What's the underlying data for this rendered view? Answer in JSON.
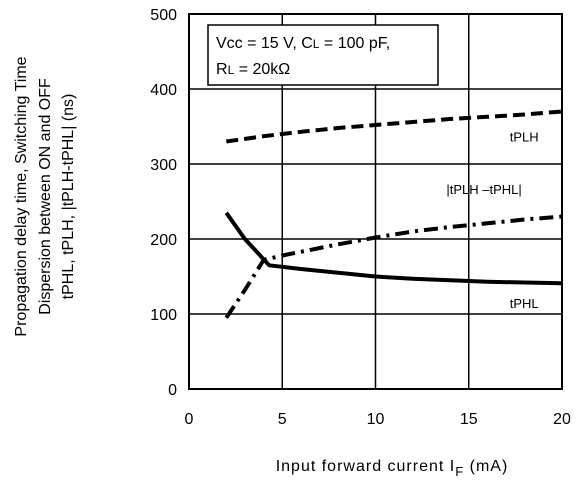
{
  "chart_data": {
    "type": "line",
    "xlabel": "Input forward current I",
    "xlabel_sub": "F",
    "xlabel_unit": " (mA)",
    "ylabel_lines": [
      "Propagation delay time, Switching Time",
      "Dispersion between ON and OFF",
      "tPHL, tPLH, |tPLH-tPHL| (ns)"
    ],
    "xlim": [
      0,
      20
    ],
    "ylim": [
      0,
      500
    ],
    "xticks": [
      "0",
      "5",
      "10",
      "15",
      "20"
    ],
    "yticks": [
      "0",
      "100",
      "200",
      "300",
      "400",
      "500"
    ],
    "grid": true,
    "conditions": {
      "line1": "Vcc = 15 V, C",
      "line1_sub": "L",
      "line1_end": " = 100 pF,",
      "line2": "R",
      "line2_sub": "L",
      "line2_end": " = 20kΩ"
    },
    "series": [
      {
        "name": "tPLH",
        "style": "dashed",
        "x": [
          2,
          4,
          6,
          8,
          10,
          12,
          14,
          16,
          18,
          20
        ],
        "y": [
          330,
          337,
          343,
          348,
          352,
          356,
          360,
          363,
          366,
          370
        ]
      },
      {
        "name": "|tPLH –tPHL|",
        "style": "dashdot",
        "x": [
          2,
          3,
          4,
          5,
          6,
          8,
          10,
          12,
          14,
          16,
          18,
          20
        ],
        "y": [
          95,
          132,
          172,
          178,
          183,
          193,
          202,
          210,
          216,
          221,
          226,
          230
        ]
      },
      {
        "name": "tPHL",
        "style": "solid",
        "x": [
          2,
          3,
          4.3,
          6,
          8,
          10,
          12,
          14,
          16,
          18,
          20
        ],
        "y": [
          235,
          200,
          165,
          160,
          155,
          150,
          147,
          145,
          143,
          142,
          141
        ]
      }
    ],
    "labels": [
      {
        "text": "tPLH",
        "x": 17.2,
        "y": 330
      },
      {
        "text": "|tPLH –tPHL|",
        "x": 13.8,
        "y": 260
      },
      {
        "text": "tPHL",
        "x": 17.2,
        "y": 108
      }
    ]
  }
}
